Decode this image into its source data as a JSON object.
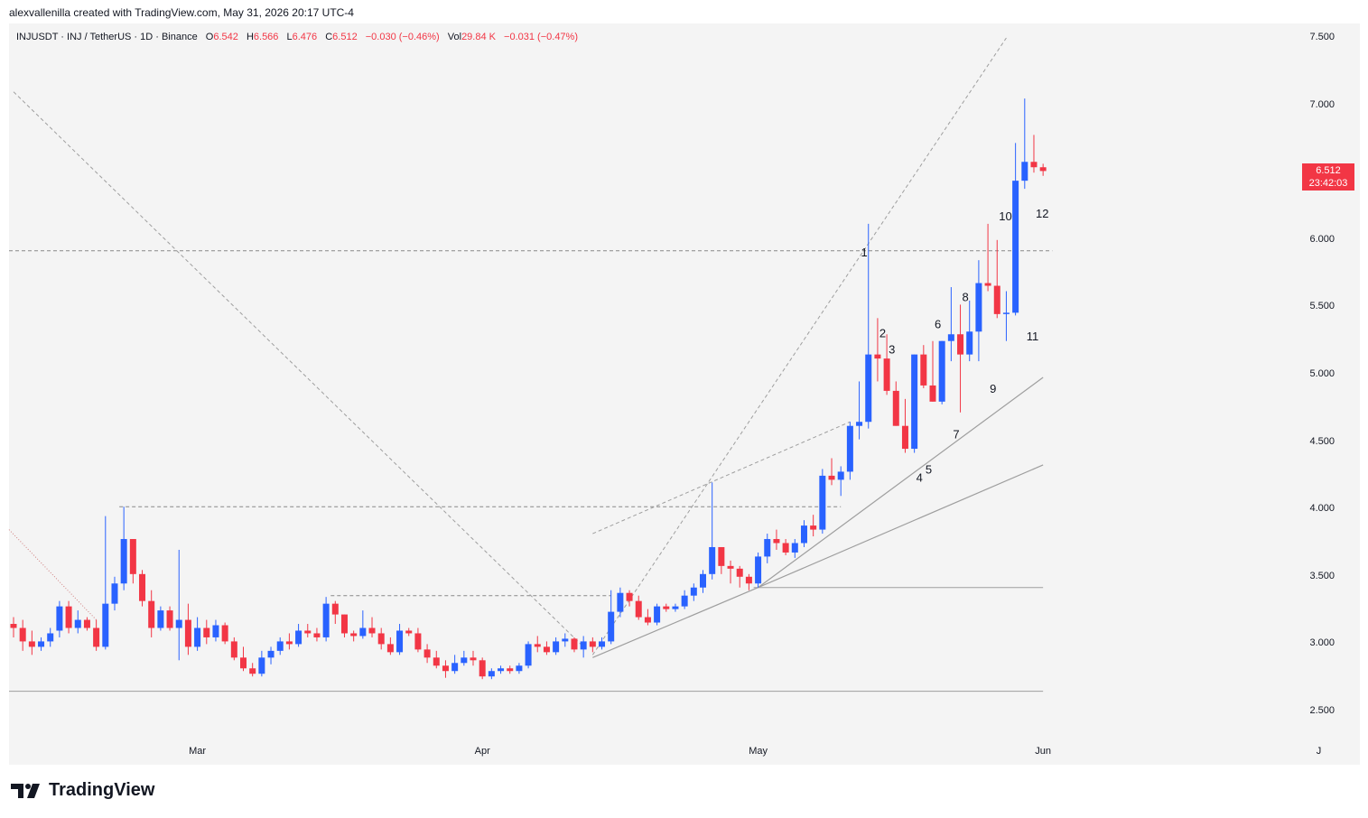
{
  "header": {
    "created_by": "alexvallenilla created with TradingView.com, May 31, 2026 20:17 UTC-4"
  },
  "legend": {
    "symbol": "INJUSDT · INJ / TetherUS · 1D · Binance",
    "o_label": "O",
    "o_value": "6.542",
    "h_label": "H",
    "h_value": "6.566",
    "l_label": "L",
    "l_value": "6.476",
    "c_label": "C",
    "c_value": "6.512",
    "change": "−0.030 (−0.46%)",
    "vol_label": "Vol",
    "vol_value": "29.84 K",
    "vol_change": "−0.031 (−0.47%)"
  },
  "price_badge": {
    "price": "6.512",
    "countdown": "23:42:03"
  },
  "logo": {
    "text": "TradingView"
  },
  "colors": {
    "up": "#2962ff",
    "down": "#f23645",
    "grid": "#f4f4f4",
    "line": "#9e9e9e"
  },
  "chart_data": {
    "type": "candlestick",
    "y_ticks": [
      "7.500",
      "7.000",
      "6.000",
      "5.500",
      "5.000",
      "4.500",
      "4.000",
      "3.500",
      "3.000",
      "2.500"
    ],
    "y_tick_values": [
      7.5,
      7.0,
      6.0,
      5.5,
      5.0,
      4.5,
      4.0,
      3.5,
      3.0,
      2.5
    ],
    "x_ticks": [
      {
        "label": "Mar",
        "index": 20
      },
      {
        "label": "Apr",
        "index": 51
      },
      {
        "label": "May",
        "index": 81
      },
      {
        "label": "Jun",
        "index": 112
      },
      {
        "label": "J",
        "index": 142
      }
    ],
    "ylim": [
      2.35,
      7.6
    ],
    "candles": [
      [
        3.15,
        3.2,
        3.05,
        3.12
      ],
      [
        3.12,
        3.18,
        2.95,
        3.02
      ],
      [
        3.02,
        3.1,
        2.92,
        2.98
      ],
      [
        2.98,
        3.05,
        2.95,
        3.02
      ],
      [
        3.02,
        3.12,
        2.98,
        3.08
      ],
      [
        3.1,
        3.32,
        3.05,
        3.28
      ],
      [
        3.28,
        3.32,
        3.08,
        3.12
      ],
      [
        3.12,
        3.25,
        3.08,
        3.18
      ],
      [
        3.18,
        3.2,
        3.1,
        3.12
      ],
      [
        3.12,
        3.18,
        2.95,
        2.98
      ],
      [
        2.98,
        3.95,
        2.96,
        3.3
      ],
      [
        3.3,
        3.5,
        3.25,
        3.45
      ],
      [
        3.45,
        4.02,
        3.4,
        3.78
      ],
      [
        3.78,
        3.78,
        3.45,
        3.52
      ],
      [
        3.52,
        3.55,
        3.28,
        3.32
      ],
      [
        3.32,
        3.4,
        3.05,
        3.12
      ],
      [
        3.12,
        3.28,
        3.1,
        3.25
      ],
      [
        3.25,
        3.28,
        3.1,
        3.12
      ],
      [
        3.12,
        3.7,
        2.88,
        3.18
      ],
      [
        3.18,
        3.3,
        2.92,
        2.98
      ],
      [
        2.98,
        3.2,
        2.95,
        3.12
      ],
      [
        3.12,
        3.18,
        3.0,
        3.05
      ],
      [
        3.05,
        3.18,
        3.02,
        3.14
      ],
      [
        3.14,
        3.16,
        3.0,
        3.02
      ],
      [
        3.02,
        3.05,
        2.88,
        2.9
      ],
      [
        2.9,
        2.98,
        2.8,
        2.82
      ],
      [
        2.82,
        2.86,
        2.76,
        2.78
      ],
      [
        2.78,
        2.95,
        2.76,
        2.9
      ],
      [
        2.9,
        2.98,
        2.85,
        2.95
      ],
      [
        2.95,
        3.05,
        2.92,
        3.02
      ],
      [
        3.02,
        3.08,
        2.96,
        3.0
      ],
      [
        3.0,
        3.15,
        2.98,
        3.1
      ],
      [
        3.1,
        3.15,
        3.05,
        3.08
      ],
      [
        3.08,
        3.12,
        3.02,
        3.05
      ],
      [
        3.05,
        3.35,
        3.02,
        3.3
      ],
      [
        3.3,
        3.32,
        3.15,
        3.22
      ],
      [
        3.22,
        3.22,
        3.05,
        3.08
      ],
      [
        3.08,
        3.1,
        3.02,
        3.06
      ],
      [
        3.06,
        3.25,
        3.04,
        3.12
      ],
      [
        3.12,
        3.2,
        3.05,
        3.08
      ],
      [
        3.08,
        3.12,
        2.96,
        3.0
      ],
      [
        3.0,
        3.05,
        2.92,
        2.94
      ],
      [
        2.94,
        3.15,
        2.92,
        3.1
      ],
      [
        3.1,
        3.12,
        3.06,
        3.08
      ],
      [
        3.08,
        3.12,
        2.94,
        2.96
      ],
      [
        2.96,
        3.0,
        2.86,
        2.9
      ],
      [
        2.9,
        2.95,
        2.82,
        2.84
      ],
      [
        2.84,
        2.88,
        2.75,
        2.8
      ],
      [
        2.8,
        2.92,
        2.78,
        2.86
      ],
      [
        2.86,
        2.95,
        2.84,
        2.9
      ],
      [
        2.9,
        2.95,
        2.84,
        2.88
      ],
      [
        2.88,
        2.9,
        2.74,
        2.76
      ],
      [
        2.76,
        2.82,
        2.74,
        2.8
      ],
      [
        2.8,
        2.84,
        2.78,
        2.82
      ],
      [
        2.82,
        2.84,
        2.78,
        2.8
      ],
      [
        2.8,
        2.86,
        2.78,
        2.84
      ],
      [
        2.84,
        3.02,
        2.82,
        3.0
      ],
      [
        3.0,
        3.06,
        2.94,
        2.98
      ],
      [
        2.98,
        3.02,
        2.92,
        2.94
      ],
      [
        2.94,
        3.05,
        2.92,
        3.02
      ],
      [
        3.02,
        3.08,
        2.98,
        3.04
      ],
      [
        3.04,
        3.05,
        2.94,
        2.96
      ],
      [
        2.96,
        3.06,
        2.9,
        3.02
      ],
      [
        3.02,
        3.05,
        2.94,
        2.98
      ],
      [
        2.98,
        3.05,
        2.96,
        3.02
      ],
      [
        3.02,
        3.4,
        3.0,
        3.24
      ],
      [
        3.24,
        3.42,
        3.2,
        3.38
      ],
      [
        3.38,
        3.4,
        3.28,
        3.32
      ],
      [
        3.32,
        3.36,
        3.18,
        3.2
      ],
      [
        3.2,
        3.26,
        3.14,
        3.16
      ],
      [
        3.16,
        3.3,
        3.14,
        3.28
      ],
      [
        3.28,
        3.3,
        3.24,
        3.26
      ],
      [
        3.26,
        3.3,
        3.24,
        3.28
      ],
      [
        3.28,
        3.4,
        3.26,
        3.36
      ],
      [
        3.36,
        3.45,
        3.32,
        3.42
      ],
      [
        3.42,
        3.55,
        3.38,
        3.52
      ],
      [
        3.52,
        4.2,
        3.48,
        3.72
      ],
      [
        3.72,
        3.72,
        3.52,
        3.58
      ],
      [
        3.58,
        3.62,
        3.45,
        3.56
      ],
      [
        3.56,
        3.58,
        3.42,
        3.5
      ],
      [
        3.5,
        3.52,
        3.4,
        3.45
      ],
      [
        3.45,
        3.68,
        3.42,
        3.65
      ],
      [
        3.65,
        3.82,
        3.6,
        3.78
      ],
      [
        3.78,
        3.85,
        3.7,
        3.75
      ],
      [
        3.75,
        3.78,
        3.66,
        3.68
      ],
      [
        3.68,
        3.78,
        3.64,
        3.75
      ],
      [
        3.75,
        3.92,
        3.72,
        3.88
      ],
      [
        3.88,
        3.96,
        3.8,
        3.85
      ],
      [
        3.85,
        4.3,
        3.82,
        4.25
      ],
      [
        4.25,
        4.38,
        4.18,
        4.22
      ],
      [
        4.22,
        4.32,
        4.1,
        4.28
      ],
      [
        4.28,
        4.65,
        4.22,
        4.62
      ],
      [
        4.62,
        4.95,
        4.52,
        4.65
      ],
      [
        4.65,
        6.12,
        4.6,
        5.15
      ],
      [
        5.15,
        5.42,
        4.95,
        5.12
      ],
      [
        5.12,
        5.3,
        4.85,
        4.88
      ],
      [
        4.88,
        4.95,
        4.62,
        4.62
      ],
      [
        4.62,
        4.82,
        4.42,
        4.45
      ],
      [
        4.45,
        5.15,
        4.42,
        5.15
      ],
      [
        5.15,
        5.22,
        4.9,
        4.92
      ],
      [
        4.92,
        5.25,
        4.8,
        4.8
      ],
      [
        4.8,
        5.25,
        4.78,
        5.25
      ],
      [
        5.25,
        5.65,
        5.1,
        5.3
      ],
      [
        5.3,
        5.52,
        4.72,
        5.15
      ],
      [
        5.15,
        5.55,
        5.1,
        5.32
      ],
      [
        5.32,
        5.85,
        5.1,
        5.68
      ],
      [
        5.68,
        6.12,
        5.62,
        5.66
      ],
      [
        5.66,
        6.0,
        5.42,
        5.45
      ],
      [
        5.45,
        5.62,
        5.25,
        5.46
      ],
      [
        5.46,
        6.72,
        5.44,
        6.44
      ],
      [
        6.44,
        7.05,
        6.38,
        6.58
      ],
      [
        6.58,
        6.78,
        6.5,
        6.54
      ],
      [
        6.54,
        6.566,
        6.476,
        6.512
      ]
    ],
    "wave_labels": [
      {
        "label": "1",
        "index": 92,
        "price": 5.85,
        "pos": "above"
      },
      {
        "label": "2",
        "index": 94,
        "price": 5.25,
        "pos": "above"
      },
      {
        "label": "3",
        "index": 95,
        "price": 5.13,
        "pos": "above"
      },
      {
        "label": "4",
        "index": 98,
        "price": 4.3,
        "pos": "below"
      },
      {
        "label": "5",
        "index": 99,
        "price": 4.36,
        "pos": "below"
      },
      {
        "label": "6",
        "index": 100,
        "price": 5.32,
        "pos": "above"
      },
      {
        "label": "7",
        "index": 102,
        "price": 4.62,
        "pos": "below"
      },
      {
        "label": "8",
        "index": 103,
        "price": 5.52,
        "pos": "above"
      },
      {
        "label": "9",
        "index": 106,
        "price": 4.96,
        "pos": "below"
      },
      {
        "label": "10",
        "index": 107,
        "price": 6.12,
        "pos": "above"
      },
      {
        "label": "11",
        "index": 110,
        "price": 5.35,
        "pos": "below"
      },
      {
        "label": "12",
        "index": 111,
        "price": 6.26,
        "pos": "below"
      }
    ],
    "drawings": {
      "h_dashed": [
        {
          "price": 5.92,
          "i1": 0,
          "i2": 113
        },
        {
          "price": 4.02,
          "i1": 12,
          "i2": 90
        },
        {
          "price": 3.36,
          "i1": 35,
          "i2": 65
        }
      ],
      "h_solid": [
        {
          "price": 2.65,
          "i1": 0,
          "i2": 112
        },
        {
          "price": 3.42,
          "i1": 81,
          "i2": 112
        }
      ],
      "dashed_lines": [
        {
          "i1": 0,
          "p1": 7.1,
          "i2": 62,
          "p2": 2.98
        },
        {
          "i1": 63,
          "p1": 2.92,
          "i2": 108,
          "p2": 7.5
        },
        {
          "i1": 63,
          "p1": 3.82,
          "i2": 91,
          "p2": 4.65
        }
      ],
      "solid_lines": [
        {
          "i1": 63,
          "p1": 2.9,
          "i2": 81,
          "p2": 3.42
        },
        {
          "i1": 81,
          "p1": 3.42,
          "i2": 112,
          "p2": 4.98
        },
        {
          "i1": 81,
          "p1": 3.42,
          "i2": 112,
          "p2": 4.33
        }
      ],
      "dotted_lines": [
        {
          "i1": 0,
          "p1": 3.85,
          "i2": 9,
          "p2": 3.18
        }
      ]
    }
  }
}
